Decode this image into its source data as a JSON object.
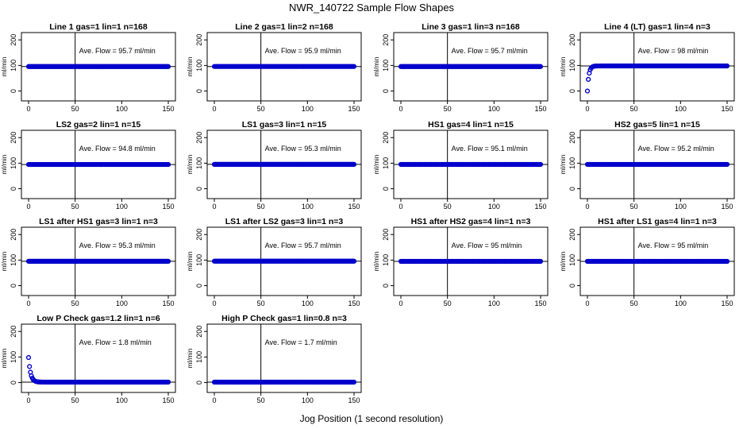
{
  "figure": {
    "title": "NWR_140722  Sample Flow Shapes",
    "xlabel": "Jog Position (1 second resolution)"
  },
  "chart_data": [
    {
      "type": "scatter",
      "title": "Line 1 gas=1 lin=1 n=168",
      "ylabel": "ml/min",
      "annotation": "Ave. Flow = 95.7  ml/min",
      "level": 95.7,
      "vline": 50,
      "shape": "flat",
      "xlim": [
        0,
        150
      ],
      "ylim": [
        -20,
        210
      ],
      "xticks": [
        0,
        50,
        100,
        150
      ],
      "yticks": [
        0,
        100,
        200
      ]
    },
    {
      "type": "scatter",
      "title": "Line 2 gas=1 lin=2 n=168",
      "ylabel": "ml/min",
      "annotation": "Ave. Flow = 95.9  ml/min",
      "level": 95.9,
      "vline": 50,
      "shape": "flat",
      "xlim": [
        0,
        150
      ],
      "ylim": [
        -20,
        210
      ],
      "xticks": [
        0,
        50,
        100,
        150
      ],
      "yticks": [
        0,
        100,
        200
      ]
    },
    {
      "type": "scatter",
      "title": "Line 3 gas=1 lin=3 n=168",
      "ylabel": "ml/min",
      "annotation": "Ave. Flow = 95.7  ml/min",
      "level": 95.7,
      "vline": 50,
      "shape": "flat",
      "xlim": [
        0,
        150
      ],
      "ylim": [
        -20,
        210
      ],
      "xticks": [
        0,
        50,
        100,
        150
      ],
      "yticks": [
        0,
        100,
        200
      ]
    },
    {
      "type": "scatter",
      "title": "Line 4 (LT) gas=1 lin=4 n=3",
      "ylabel": "ml/min",
      "annotation": "Ave. Flow = 98  ml/min",
      "level": 98,
      "vline": 50,
      "shape": "rise",
      "start": 0,
      "xlim": [
        0,
        150
      ],
      "ylim": [
        -20,
        210
      ],
      "xticks": [
        0,
        50,
        100,
        150
      ],
      "yticks": [
        0,
        100,
        200
      ]
    },
    {
      "type": "scatter",
      "title": "LS2 gas=2 lin=1 n=15",
      "ylabel": "ml/min",
      "annotation": "Ave. Flow = 94.8  ml/min",
      "level": 94.8,
      "vline": 50,
      "shape": "flat",
      "xlim": [
        0,
        150
      ],
      "ylim": [
        -20,
        210
      ],
      "xticks": [
        0,
        50,
        100,
        150
      ],
      "yticks": [
        0,
        100,
        200
      ]
    },
    {
      "type": "scatter",
      "title": "LS1 gas=3 lin=1 n=15",
      "ylabel": "ml/min",
      "annotation": "Ave. Flow = 95.3  ml/min",
      "level": 95.3,
      "vline": 50,
      "shape": "flat",
      "xlim": [
        0,
        150
      ],
      "ylim": [
        -20,
        210
      ],
      "xticks": [
        0,
        50,
        100,
        150
      ],
      "yticks": [
        0,
        100,
        200
      ]
    },
    {
      "type": "scatter",
      "title": "HS1 gas=4 lin=1 n=15",
      "ylabel": "ml/min",
      "annotation": "Ave. Flow = 95.1  ml/min",
      "level": 95.1,
      "vline": 50,
      "shape": "flat",
      "xlim": [
        0,
        150
      ],
      "ylim": [
        -20,
        210
      ],
      "xticks": [
        0,
        50,
        100,
        150
      ],
      "yticks": [
        0,
        100,
        200
      ]
    },
    {
      "type": "scatter",
      "title": "HS2 gas=5 lin=1 n=15",
      "ylabel": "ml/min",
      "annotation": "Ave. Flow = 95.2  ml/min",
      "level": 95.2,
      "vline": 50,
      "shape": "flat",
      "xlim": [
        0,
        150
      ],
      "ylim": [
        -20,
        210
      ],
      "xticks": [
        0,
        50,
        100,
        150
      ],
      "yticks": [
        0,
        100,
        200
      ]
    },
    {
      "type": "scatter",
      "title": "LS1 after HS1 gas=3 lin=1 n=3",
      "ylabel": "ml/min",
      "annotation": "Ave. Flow = 95.3  ml/min",
      "level": 95.3,
      "vline": 50,
      "shape": "flat",
      "xlim": [
        0,
        150
      ],
      "ylim": [
        -20,
        210
      ],
      "xticks": [
        0,
        50,
        100,
        150
      ],
      "yticks": [
        0,
        100,
        200
      ]
    },
    {
      "type": "scatter",
      "title": "LS1 after LS2 gas=3 lin=1 n=3",
      "ylabel": "ml/min",
      "annotation": "Ave. Flow = 95.7  ml/min",
      "level": 95.7,
      "vline": 50,
      "shape": "flat",
      "xlim": [
        0,
        150
      ],
      "ylim": [
        -20,
        210
      ],
      "xticks": [
        0,
        50,
        100,
        150
      ],
      "yticks": [
        0,
        100,
        200
      ]
    },
    {
      "type": "scatter",
      "title": "HS1 after HS2 gas=4 lin=1 n=3",
      "ylabel": "ml/min",
      "annotation": "Ave. Flow = 95  ml/min",
      "level": 95,
      "vline": 50,
      "shape": "flat",
      "xlim": [
        0,
        150
      ],
      "ylim": [
        -20,
        210
      ],
      "xticks": [
        0,
        50,
        100,
        150
      ],
      "yticks": [
        0,
        100,
        200
      ]
    },
    {
      "type": "scatter",
      "title": "HS1 after LS1 gas=4 lin=1 n=3",
      "ylabel": "ml/min",
      "annotation": "Ave. Flow = 95  ml/min",
      "level": 95,
      "vline": 50,
      "shape": "flat",
      "xlim": [
        0,
        150
      ],
      "ylim": [
        -20,
        210
      ],
      "xticks": [
        0,
        50,
        100,
        150
      ],
      "yticks": [
        0,
        100,
        200
      ]
    },
    {
      "type": "scatter",
      "title": "Low P Check gas=1.2 lin=1 n=6",
      "ylabel": "ml/min",
      "annotation": "Ave. Flow = 1.8  ml/min",
      "level": 1.8,
      "vline": 50,
      "shape": "decay",
      "start": 98,
      "xlim": [
        0,
        150
      ],
      "ylim": [
        -20,
        210
      ],
      "xticks": [
        0,
        50,
        100,
        150
      ],
      "yticks": [
        0,
        100,
        200
      ]
    },
    {
      "type": "scatter",
      "title": "High P Check gas=1 lin=0.8 n=3",
      "ylabel": "ml/min",
      "annotation": "Ave. Flow = 1.7  ml/min",
      "level": 1.7,
      "vline": 50,
      "shape": "flat",
      "xlim": [
        0,
        150
      ],
      "ylim": [
        -20,
        210
      ],
      "xticks": [
        0,
        50,
        100,
        150
      ],
      "yticks": [
        0,
        100,
        200
      ]
    }
  ],
  "colors": {
    "points": "#0000cc",
    "axes": "#000000"
  }
}
